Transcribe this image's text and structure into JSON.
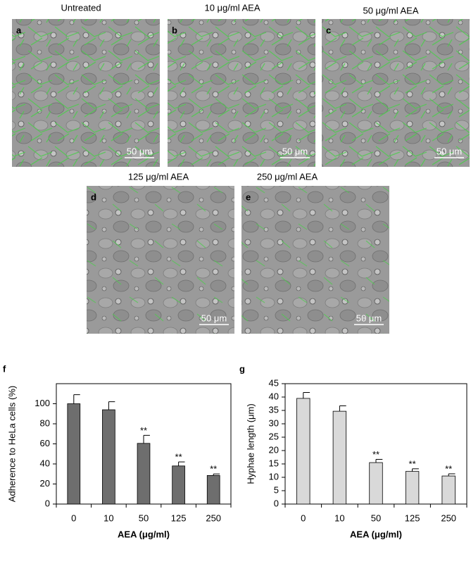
{
  "panels": [
    {
      "letter": "a",
      "title": "Untreated",
      "scale_label": "50 μm"
    },
    {
      "letter": "b",
      "title": "10 μg/ml AEA",
      "scale_label": "50 μm"
    },
    {
      "letter": "c",
      "title": "50 μg/ml AEA",
      "scale_label": "50 μm"
    },
    {
      "letter": "d",
      "title": "125 μg/ml AEA",
      "scale_label": "50 μm"
    },
    {
      "letter": "e",
      "title": "250 μg/ml AEA",
      "scale_label": "50 μm"
    }
  ],
  "chart_data": [
    {
      "type": "bar",
      "panel": "f",
      "ylabel": "Adherence to HeLa cells (%)",
      "xlabel": "AEA (μg/ml)",
      "categories": [
        "0",
        "10",
        "50",
        "125",
        "250"
      ],
      "values": [
        100,
        94,
        60.5,
        38,
        28.5
      ],
      "errors": [
        9,
        8,
        8,
        4,
        1.5
      ],
      "annotations": [
        null,
        null,
        "**",
        "**",
        "**"
      ],
      "color": "#6e6e6e",
      "ylim": [
        0,
        120
      ],
      "yticks": [
        0,
        20,
        40,
        60,
        80,
        100
      ]
    },
    {
      "type": "bar",
      "panel": "g",
      "ylabel": "Hyphae length (μm)",
      "xlabel": "AEA (μg/ml)",
      "categories": [
        "0",
        "10",
        "50",
        "125",
        "250"
      ],
      "values": [
        39.5,
        34.7,
        15.5,
        12.2,
        10.5
      ],
      "errors": [
        2.2,
        2,
        1.2,
        1,
        0.8
      ],
      "annotations": [
        null,
        null,
        "**",
        "**",
        "**"
      ],
      "color": "#d9d9d9",
      "ylim": [
        0,
        45
      ],
      "yticks": [
        0,
        5,
        10,
        15,
        20,
        25,
        30,
        35,
        40,
        45
      ]
    }
  ]
}
